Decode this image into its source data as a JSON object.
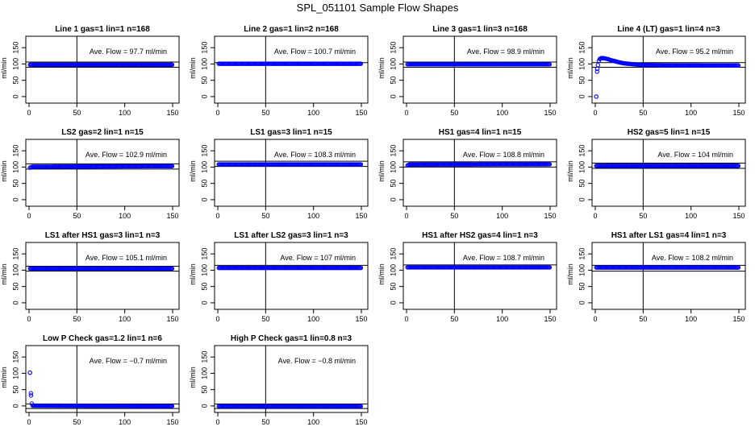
{
  "figure": {
    "title": "SPL_051101  Sample Flow Shapes",
    "ylabel": "ml/min",
    "xticks": [
      "0",
      "50",
      "100",
      "150"
    ],
    "yticks": [
      "0",
      "50",
      "100",
      "150"
    ],
    "point_color": "#0000ff",
    "line_color": "#000000"
  },
  "chart_data": [
    {
      "type": "scatter",
      "title": "Line 1 gas=1 lin=1 n=168",
      "ylabel": "ml/min",
      "annotation": "Ave. Flow = 97.7  ml/min",
      "xlim": [
        0,
        150
      ],
      "ylim": [
        -20,
        185
      ],
      "grid": false,
      "series": [
        {
          "values": [
            [
              1,
              97.7
            ],
            [
              150,
              97.7
            ]
          ]
        }
      ],
      "hlines": [
        106,
        90
      ],
      "vline": 50
    },
    {
      "type": "scatter",
      "title": "Line 2 gas=1 lin=2 n=168",
      "ylabel": "ml/min",
      "annotation": "Ave. Flow = 100.7  ml/min",
      "xlim": [
        0,
        150
      ],
      "ylim": [
        -20,
        185
      ],
      "grid": false,
      "series": [
        {
          "values": [
            [
              1,
              100.7
            ],
            [
              150,
              100.7
            ]
          ]
        }
      ],
      "hlines": [
        104
      ],
      "vline": 50
    },
    {
      "type": "scatter",
      "title": "Line 3 gas=1 lin=3 n=168",
      "ylabel": "ml/min",
      "annotation": "Ave. Flow = 98.9  ml/min",
      "xlim": [
        0,
        150
      ],
      "ylim": [
        -20,
        185
      ],
      "grid": false,
      "series": [
        {
          "values": [
            [
              1,
              98.9
            ],
            [
              150,
              98.9
            ]
          ]
        }
      ],
      "hlines": [
        106,
        90
      ],
      "vline": 50
    },
    {
      "type": "scatter",
      "title": "Line 4 (LT) gas=1 lin=4 n=3",
      "ylabel": "ml/min",
      "annotation": "Ave. Flow = 95.2  ml/min",
      "xlim": [
        0,
        150
      ],
      "ylim": [
        -20,
        185
      ],
      "grid": false,
      "series": [
        {
          "values": [
            [
              1,
              0
            ],
            [
              2,
              85
            ],
            [
              4,
              114
            ],
            [
              6,
              118
            ],
            [
              8,
              118
            ],
            [
              10,
              117
            ],
            [
              13,
              115
            ],
            [
              16,
              112
            ],
            [
              20,
              109
            ],
            [
              25,
              105
            ],
            [
              30,
              102
            ],
            [
              40,
              99
            ],
            [
              50,
              97
            ],
            [
              70,
              96
            ],
            [
              100,
              95.5
            ],
            [
              150,
              95.2
            ]
          ]
        }
      ],
      "hlines": [
        104,
        90
      ],
      "vline": 50
    },
    {
      "type": "scatter",
      "title": "LS2 gas=2 lin=1 n=15",
      "ylabel": "ml/min",
      "annotation": "Ave. Flow = 102.9  ml/min",
      "xlim": [
        0,
        150
      ],
      "ylim": [
        -20,
        185
      ],
      "grid": false,
      "series": [
        {
          "values": [
            [
              1,
              98
            ],
            [
              3,
              101
            ],
            [
              150,
              103
            ]
          ]
        }
      ],
      "hlines": [
        110,
        94
      ],
      "vline": 50
    },
    {
      "type": "scatter",
      "title": "LS1 gas=3 lin=1 n=15",
      "ylabel": "ml/min",
      "annotation": "Ave. Flow = 108.3  ml/min",
      "xlim": [
        0,
        150
      ],
      "ylim": [
        -20,
        185
      ],
      "grid": false,
      "series": [
        {
          "values": [
            [
              1,
              108.3
            ],
            [
              150,
              108.3
            ]
          ]
        }
      ],
      "hlines": [
        118,
        102
      ],
      "vline": 50
    },
    {
      "type": "scatter",
      "title": "HS1 gas=4 lin=1 n=15",
      "ylabel": "ml/min",
      "annotation": "Ave. Flow = 108.8  ml/min",
      "xlim": [
        0,
        150
      ],
      "ylim": [
        -20,
        185
      ],
      "grid": false,
      "series": [
        {
          "values": [
            [
              1,
              105
            ],
            [
              3,
              108
            ],
            [
              150,
              108.8
            ]
          ]
        }
      ],
      "hlines": [
        116,
        100
      ],
      "vline": 50
    },
    {
      "type": "scatter",
      "title": "HS2 gas=5 lin=1 n=15",
      "ylabel": "ml/min",
      "annotation": "Ave. Flow = 104  ml/min",
      "xlim": [
        0,
        150
      ],
      "ylim": [
        -20,
        185
      ],
      "grid": false,
      "series": [
        {
          "values": [
            [
              1,
              104
            ],
            [
              150,
              104
            ]
          ]
        }
      ],
      "hlines": [
        112,
        96
      ],
      "vline": 50
    },
    {
      "type": "scatter",
      "title": "LS1 after HS1 gas=3 lin=1 n=3",
      "ylabel": "ml/min",
      "annotation": "Ave. Flow = 105.1  ml/min",
      "xlim": [
        0,
        150
      ],
      "ylim": [
        -20,
        185
      ],
      "grid": false,
      "series": [
        {
          "values": [
            [
              1,
              105.1
            ],
            [
              150,
              105.1
            ]
          ]
        }
      ],
      "hlines": [
        112,
        97
      ],
      "vline": 50
    },
    {
      "type": "scatter",
      "title": "LS1 after LS2 gas=3 lin=1 n=3",
      "ylabel": "ml/min",
      "annotation": "Ave. Flow = 107  ml/min",
      "xlim": [
        0,
        150
      ],
      "ylim": [
        -20,
        185
      ],
      "grid": false,
      "series": [
        {
          "values": [
            [
              1,
              107
            ],
            [
              150,
              107
            ]
          ]
        }
      ],
      "hlines": [
        115
      ],
      "vline": 50
    },
    {
      "type": "scatter",
      "title": "HS1 after HS2 gas=4 lin=1 n=3",
      "ylabel": "ml/min",
      "annotation": "Ave. Flow = 108.7  ml/min",
      "xlim": [
        0,
        150
      ],
      "ylim": [
        -20,
        185
      ],
      "grid": false,
      "series": [
        {
          "values": [
            [
              1,
              108.7
            ],
            [
              150,
              108.7
            ]
          ]
        }
      ],
      "hlines": [
        116
      ],
      "vline": 50
    },
    {
      "type": "scatter",
      "title": "HS1 after LS1 gas=4 lin=1 n=3",
      "ylabel": "ml/min",
      "annotation": "Ave. Flow = 108.2  ml/min",
      "xlim": [
        0,
        150
      ],
      "ylim": [
        -20,
        185
      ],
      "grid": false,
      "series": [
        {
          "values": [
            [
              1,
              108.2
            ],
            [
              150,
              108.2
            ]
          ]
        }
      ],
      "hlines": [
        115,
        97
      ],
      "vline": 50
    },
    {
      "type": "scatter",
      "title": "Low P Check gas=1.2 lin=1 n=6",
      "ylabel": "ml/min",
      "annotation": "Ave. Flow = −0.7  ml/min",
      "xlim": [
        0,
        150
      ],
      "ylim": [
        -20,
        185
      ],
      "grid": false,
      "series": [
        {
          "values": [
            [
              1,
              102
            ],
            [
              2,
              32
            ],
            [
              3,
              1
            ],
            [
              150,
              -0.7
            ]
          ]
        }
      ],
      "hlines": [
        6,
        -8
      ],
      "vline": 50
    },
    {
      "type": "scatter",
      "title": "High P Check gas=1 lin=0.8 n=3",
      "ylabel": "ml/min",
      "annotation": "Ave. Flow = −0.8  ml/min",
      "xlim": [
        0,
        150
      ],
      "ylim": [
        -20,
        185
      ],
      "grid": false,
      "series": [
        {
          "values": [
            [
              1,
              -0.8
            ],
            [
              150,
              -0.8
            ]
          ]
        }
      ],
      "hlines": [
        6,
        -8
      ],
      "vline": 50
    }
  ]
}
